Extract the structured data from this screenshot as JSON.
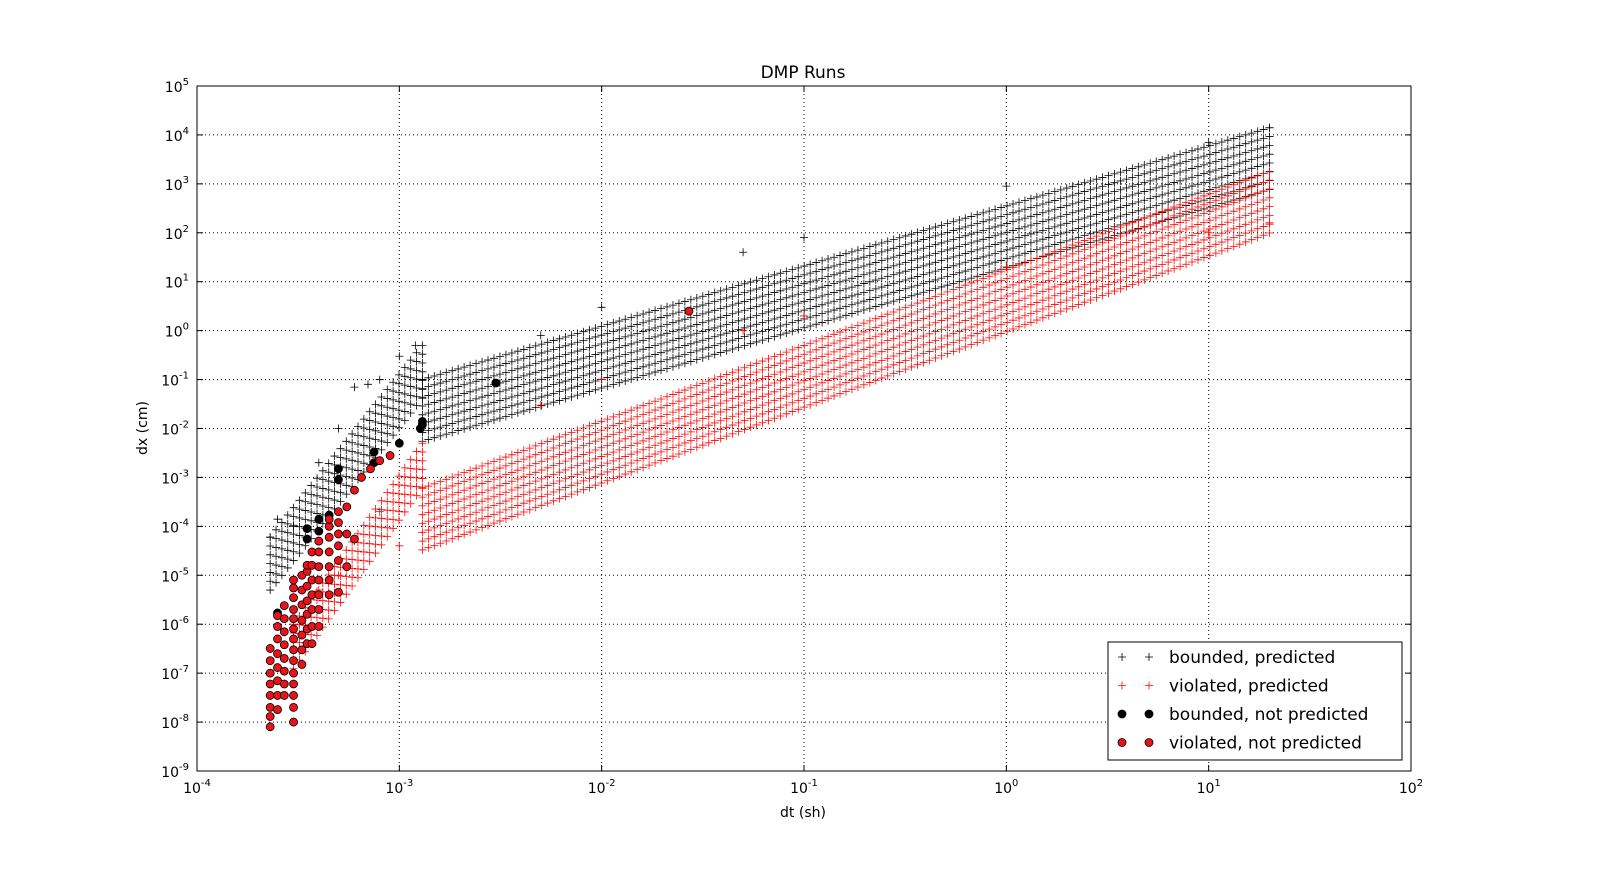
{
  "chart_data": {
    "type": "scatter",
    "title": "DMP Runs",
    "xlabel": "dt (sh)",
    "ylabel": "dx (cm)",
    "xscale": "log",
    "yscale": "log",
    "xlim": [
      0.0001,
      100
    ],
    "ylim": [
      1e-09,
      100000
    ],
    "x_tick_labels": [
      {
        "base": "10",
        "exp": "-4"
      },
      {
        "base": "10",
        "exp": "-3"
      },
      {
        "base": "10",
        "exp": "-2"
      },
      {
        "base": "10",
        "exp": "-1"
      },
      {
        "base": "10",
        "exp": "0"
      },
      {
        "base": "10",
        "exp": "1"
      },
      {
        "base": "10",
        "exp": "2"
      }
    ],
    "y_tick_labels": [
      {
        "base": "10",
        "exp": "-9"
      },
      {
        "base": "10",
        "exp": "-8"
      },
      {
        "base": "10",
        "exp": "-7"
      },
      {
        "base": "10",
        "exp": "-6"
      },
      {
        "base": "10",
        "exp": "-5"
      },
      {
        "base": "10",
        "exp": "-4"
      },
      {
        "base": "10",
        "exp": "-3"
      },
      {
        "base": "10",
        "exp": "-2"
      },
      {
        "base": "10",
        "exp": "-1"
      },
      {
        "base": "10",
        "exp": "0"
      },
      {
        "base": "10",
        "exp": "1"
      },
      {
        "base": "10",
        "exp": "2"
      },
      {
        "base": "10",
        "exp": "3"
      },
      {
        "base": "10",
        "exp": "4"
      },
      {
        "base": "10",
        "exp": "5"
      }
    ],
    "grid": true,
    "legend_position": "bottom-right",
    "series": [
      {
        "name": "bounded, predicted",
        "marker": "plus",
        "color": "#000000",
        "bands": [
          {
            "x_range": [
              0.0013,
              20
            ],
            "y_at_x_start": 0.1,
            "y_at_x_end": 14000,
            "curves": 8
          },
          {
            "x_range": [
              0.00023,
              0.0013
            ],
            "y_at_x_start": 6e-05,
            "y_at_x_end": 0.5,
            "curves": 7
          }
        ],
        "points": [
          [
            0.00023,
            6e-05
          ],
          [
            0.00025,
            0.00014
          ],
          [
            0.0003,
            0.0001
          ],
          [
            0.0004,
            0.002
          ],
          [
            0.0005,
            0.01
          ],
          [
            0.0006,
            0.07
          ],
          [
            0.0007,
            0.08
          ],
          [
            0.0008,
            0.1
          ],
          [
            0.001,
            0.3
          ],
          [
            0.0012,
            0.5
          ],
          [
            0.0013,
            0.1
          ],
          [
            0.005,
            0.8
          ],
          [
            0.01,
            3
          ],
          [
            0.05,
            40
          ],
          [
            0.1,
            80
          ],
          [
            1,
            900
          ],
          [
            10,
            7000
          ],
          [
            20,
            14000
          ]
        ]
      },
      {
        "name": "violated, predicted",
        "marker": "plus",
        "color": "#ff0000",
        "bands": [
          {
            "x_range": [
              0.0013,
              20
            ],
            "y_at_x_start": 0.0006,
            "y_at_x_end": 1800,
            "curves": 8
          },
          {
            "x_range": [
              0.0003,
              0.0013
            ],
            "y_at_x_start": 1e-06,
            "y_at_x_end": 0.005,
            "curves": 6
          }
        ],
        "points": [
          [
            0.0003,
            1e-06
          ],
          [
            0.0004,
            5e-06
          ],
          [
            0.0005,
            1e-05
          ],
          [
            0.0006,
            5e-05
          ],
          [
            0.0008,
            0.0002
          ],
          [
            0.001,
            4e-05
          ],
          [
            0.0013,
            0.0006
          ],
          [
            0.005,
            0.03
          ],
          [
            0.01,
            0.1
          ],
          [
            0.05,
            1
          ],
          [
            0.1,
            2
          ],
          [
            1,
            20
          ],
          [
            10,
            100
          ],
          [
            20,
            160
          ]
        ]
      },
      {
        "name": "bounded, not predicted",
        "marker": "circle",
        "color": "#000000",
        "points": [
          [
            0.00025,
            1.7e-06
          ],
          [
            0.00035,
            9e-05
          ],
          [
            0.00035,
            5.5e-05
          ],
          [
            0.0004,
            0.00014
          ],
          [
            0.0004,
            8e-05
          ],
          [
            0.00045,
            0.00017
          ],
          [
            0.0005,
            0.0015
          ],
          [
            0.0005,
            0.0009
          ],
          [
            0.00075,
            0.0033
          ],
          [
            0.00075,
            0.002
          ],
          [
            0.001,
            0.005
          ],
          [
            0.00127,
            0.01
          ],
          [
            0.0013,
            0.012
          ],
          [
            0.0013,
            0.014
          ],
          [
            0.003,
            0.085
          ]
        ]
      },
      {
        "name": "violated, not predicted",
        "marker": "circle",
        "color": "#e8141a",
        "points": [
          [
            0.00023,
            8e-09
          ],
          [
            0.00023,
            1.3e-08
          ],
          [
            0.00023,
            2e-08
          ],
          [
            0.00023,
            3.5e-08
          ],
          [
            0.00023,
            6e-08
          ],
          [
            0.00023,
            1e-07
          ],
          [
            0.00023,
            1.8e-07
          ],
          [
            0.00023,
            3.2e-07
          ],
          [
            0.00025,
            1.8e-08
          ],
          [
            0.00025,
            3.5e-08
          ],
          [
            0.00025,
            7e-08
          ],
          [
            0.00025,
            1.3e-07
          ],
          [
            0.00025,
            2.5e-07
          ],
          [
            0.00025,
            5e-07
          ],
          [
            0.00025,
            9e-07
          ],
          [
            0.00025,
            1.5e-06
          ],
          [
            0.00027,
            3.5e-08
          ],
          [
            0.00027,
            6e-08
          ],
          [
            0.00027,
            1.1e-07
          ],
          [
            0.00027,
            2e-07
          ],
          [
            0.00027,
            3.8e-07
          ],
          [
            0.00027,
            7e-07
          ],
          [
            0.00027,
            1.3e-06
          ],
          [
            0.00027,
            2.4e-06
          ],
          [
            0.0003,
            1e-08
          ],
          [
            0.0003,
            2e-08
          ],
          [
            0.0003,
            3.5e-08
          ],
          [
            0.0003,
            6e-08
          ],
          [
            0.0003,
            1e-07
          ],
          [
            0.0003,
            1.8e-07
          ],
          [
            0.0003,
            3e-07
          ],
          [
            0.0003,
            5e-07
          ],
          [
            0.0003,
            8e-07
          ],
          [
            0.0003,
            1.3e-06
          ],
          [
            0.0003,
            2e-06
          ],
          [
            0.0003,
            3.5e-06
          ],
          [
            0.0003,
            5.5e-06
          ],
          [
            0.0003,
            8e-06
          ],
          [
            0.00033,
            1.5e-07
          ],
          [
            0.00033,
            3e-07
          ],
          [
            0.00033,
            6e-07
          ],
          [
            0.00033,
            1.2e-06
          ],
          [
            0.00033,
            2.5e-06
          ],
          [
            0.00033,
            5e-06
          ],
          [
            0.00033,
            1e-05
          ],
          [
            0.00035,
            4e-07
          ],
          [
            0.00035,
            8e-07
          ],
          [
            0.00035,
            1.6e-06
          ],
          [
            0.00035,
            3e-06
          ],
          [
            0.00035,
            6e-06
          ],
          [
            0.00035,
            1.2e-05
          ],
          [
            0.00035,
            1.6e-05
          ],
          [
            0.00037,
            4e-07
          ],
          [
            0.00037,
            9e-07
          ],
          [
            0.00037,
            2e-06
          ],
          [
            0.00037,
            4e-06
          ],
          [
            0.00037,
            8e-06
          ],
          [
            0.00037,
            1.6e-05
          ],
          [
            0.00037,
            3e-05
          ],
          [
            0.0004,
            9e-07
          ],
          [
            0.0004,
            2e-06
          ],
          [
            0.0004,
            4e-06
          ],
          [
            0.0004,
            8e-06
          ],
          [
            0.0004,
            1.5e-05
          ],
          [
            0.0004,
            3e-05
          ],
          [
            0.0004,
            5e-05
          ],
          [
            0.00045,
            4e-06
          ],
          [
            0.00045,
            8e-06
          ],
          [
            0.00045,
            1.5e-05
          ],
          [
            0.00045,
            3e-05
          ],
          [
            0.00045,
            6e-05
          ],
          [
            0.00045,
            0.0001
          ],
          [
            0.00045,
            0.00014
          ],
          [
            0.0005,
            4.5e-06
          ],
          [
            0.0005,
            2e-05
          ],
          [
            0.0005,
            4e-05
          ],
          [
            0.0005,
            7e-05
          ],
          [
            0.0005,
            0.00012
          ],
          [
            0.0005,
            0.0002
          ],
          [
            0.00055,
            1.5e-05
          ],
          [
            0.00055,
            7e-05
          ],
          [
            0.00055,
            0.00025
          ],
          [
            0.0006,
            5.5e-05
          ],
          [
            0.0006,
            0.00055
          ],
          [
            0.00065,
            0.001
          ],
          [
            0.00072,
            0.0015
          ],
          [
            0.0008,
            0.0022
          ],
          [
            0.0009,
            0.0028
          ],
          [
            0.027,
            2.5
          ]
        ]
      }
    ]
  }
}
